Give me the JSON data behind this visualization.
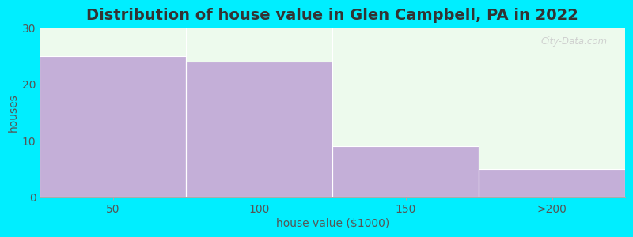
{
  "title": "Distribution of house value in Glen Campbell, PA in 2022",
  "xlabel": "house value ($1000)",
  "ylabel": "houses",
  "categories": [
    "50",
    "100",
    "150",
    ">200"
  ],
  "values": [
    25,
    24,
    9,
    5
  ],
  "bar_color": "#c4afd8",
  "bar_edgecolor": "#ffffff",
  "ylim": [
    0,
    30
  ],
  "yticks": [
    0,
    10,
    20,
    30
  ],
  "background_outer": "#00eeff",
  "background_inner": "#edfaed",
  "title_fontsize": 14,
  "label_fontsize": 10,
  "tick_fontsize": 10,
  "watermark": "City-Data.com"
}
